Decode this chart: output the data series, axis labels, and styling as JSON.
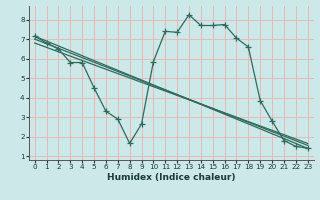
{
  "xlabel": "Humidex (Indice chaleur)",
  "xlim": [
    -0.5,
    23.5
  ],
  "ylim": [
    0.8,
    8.7
  ],
  "xticks": [
    0,
    1,
    2,
    3,
    4,
    5,
    6,
    7,
    8,
    9,
    10,
    11,
    12,
    13,
    14,
    15,
    16,
    17,
    18,
    19,
    20,
    21,
    22,
    23
  ],
  "yticks": [
    1,
    2,
    3,
    4,
    5,
    6,
    7,
    8
  ],
  "bg_color": "#cce8e8",
  "line_color": "#2d6b5e",
  "grid_color": "#e8b8b8",
  "curve_x": [
    0,
    1,
    2,
    3,
    4,
    5,
    6,
    7,
    8,
    9,
    10,
    11,
    12,
    13,
    14,
    15,
    16,
    17,
    18,
    19,
    20,
    21,
    22,
    23
  ],
  "curve_y": [
    7.15,
    6.8,
    6.5,
    5.8,
    5.8,
    4.5,
    3.3,
    2.9,
    1.65,
    2.65,
    5.85,
    7.4,
    7.35,
    8.25,
    7.7,
    7.7,
    7.75,
    7.05,
    6.6,
    3.85,
    2.8,
    1.8,
    1.5,
    1.4
  ],
  "line1_x": [
    0,
    23
  ],
  "line1_y": [
    7.15,
    1.4
  ],
  "line2_x": [
    0,
    23
  ],
  "line2_y": [
    7.0,
    1.55
  ],
  "line3_x": [
    0,
    23
  ],
  "line3_y": [
    6.8,
    1.65
  ],
  "line_width": 0.9,
  "marker_size": 4.5
}
